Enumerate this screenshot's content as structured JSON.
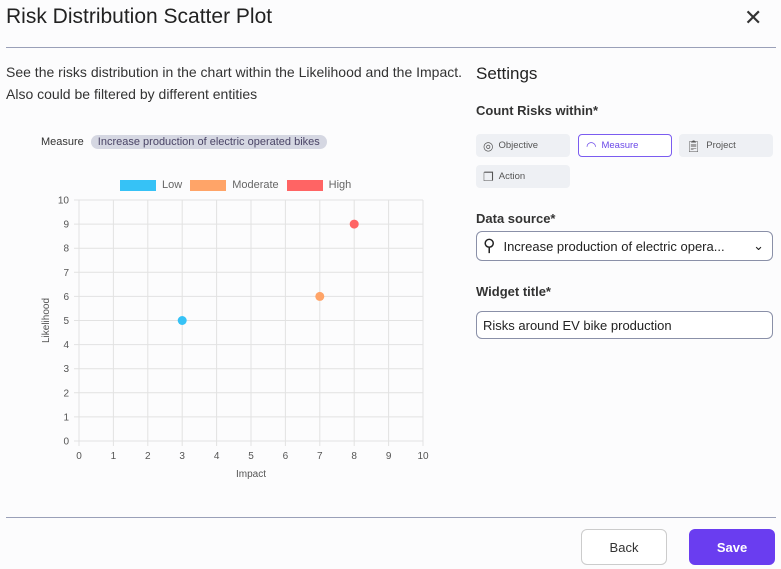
{
  "header": {
    "title": "Risk Distribution Scatter Plot",
    "close_icon": "close-icon"
  },
  "description": "See the risks distribution in the chart within the Likelihood and the Impact. Also could be filtered by different entities",
  "measure": {
    "label": "Measure",
    "value": "Increase production of electric operated bikes"
  },
  "settings": {
    "title": "Settings",
    "count_label": "Count Risks within*",
    "entities": [
      {
        "label": "Objective",
        "icon": "target-icon",
        "selected": false
      },
      {
        "label": "Measure",
        "icon": "gauge-icon",
        "selected": true
      },
      {
        "label": "Project",
        "icon": "clipboard-icon",
        "selected": false
      },
      {
        "label": "Action",
        "icon": "cards-icon",
        "selected": false
      }
    ],
    "data_source_label": "Data source*",
    "data_source_value": "Increase production of electric opera...",
    "widget_title_label": "Widget title*",
    "widget_title_value": "Risks around EV bike production"
  },
  "footer": {
    "back": "Back",
    "save": "Save"
  },
  "colors": {
    "accent": "#6a3df0",
    "low": "#36c2f6",
    "moderate": "#ffa468",
    "high": "#ff6464"
  },
  "chart_data": {
    "type": "scatter",
    "xlabel": "Impact",
    "ylabel": "Likelihood",
    "xlim": [
      0,
      10
    ],
    "ylim": [
      0,
      10
    ],
    "grid": true,
    "legend": "top",
    "xticks": [
      "0",
      "1",
      "2",
      "3",
      "4",
      "5",
      "6",
      "7",
      "8",
      "9",
      "10"
    ],
    "yticks": [
      "0",
      "1",
      "2",
      "3",
      "4",
      "5",
      "6",
      "7",
      "8",
      "9",
      "10"
    ],
    "series": [
      {
        "name": "Low",
        "color": "#36c2f6",
        "points": [
          {
            "x": 3,
            "y": 5
          }
        ]
      },
      {
        "name": "Moderate",
        "color": "#ffa468",
        "points": [
          {
            "x": 7,
            "y": 6
          }
        ]
      },
      {
        "name": "High",
        "color": "#ff6464",
        "points": [
          {
            "x": 8,
            "y": 9
          }
        ]
      }
    ]
  }
}
